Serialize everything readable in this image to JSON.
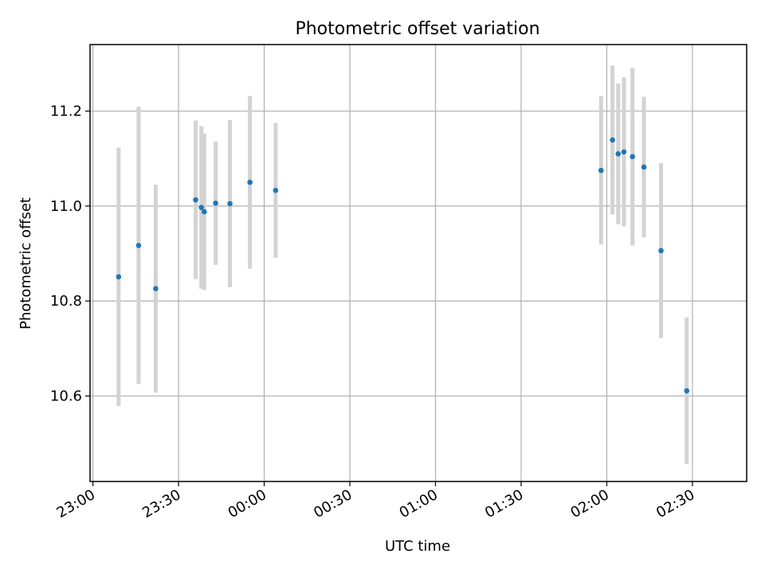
{
  "chart_data": {
    "type": "scatter",
    "title": "Photometric offset variation",
    "xlabel": "UTC time",
    "ylabel": "Photometric offset",
    "ylim": [
      10.42,
      11.34
    ],
    "xlim": [
      "22:59",
      "02:49"
    ],
    "grid": true,
    "x_ticks": [
      "23:00",
      "23:30",
      "00:00",
      "00:30",
      "01:00",
      "01:30",
      "02:00",
      "02:30"
    ],
    "y_ticks": [
      "10.6",
      "10.8",
      "11.0",
      "11.2"
    ],
    "colors": {
      "points": "#1f77b4",
      "errorbars": "#d3d3d3"
    },
    "points": [
      {
        "x": "23:09",
        "y": 10.851,
        "err": 0.272
      },
      {
        "x": "23:16",
        "y": 10.917,
        "err": 0.292
      },
      {
        "x": "23:22",
        "y": 10.826,
        "err": 0.219
      },
      {
        "x": "23:36",
        "y": 11.013,
        "err": 0.167
      },
      {
        "x": "23:38",
        "y": 10.997,
        "err": 0.171
      },
      {
        "x": "23:39",
        "y": 10.988,
        "err": 0.165
      },
      {
        "x": "23:43",
        "y": 11.006,
        "err": 0.13
      },
      {
        "x": "23:48",
        "y": 11.005,
        "err": 0.176
      },
      {
        "x": "23:55",
        "y": 11.05,
        "err": 0.182
      },
      {
        "x": "00:04",
        "y": 11.033,
        "err": 0.142
      },
      {
        "x": "01:58",
        "y": 11.075,
        "err": 0.156
      },
      {
        "x": "02:02",
        "y": 11.139,
        "err": 0.157
      },
      {
        "x": "02:04",
        "y": 11.11,
        "err": 0.148
      },
      {
        "x": "02:06",
        "y": 11.114,
        "err": 0.157
      },
      {
        "x": "02:09",
        "y": 11.104,
        "err": 0.187
      },
      {
        "x": "02:13",
        "y": 11.082,
        "err": 0.148
      },
      {
        "x": "02:19",
        "y": 10.906,
        "err": 0.184
      },
      {
        "x": "02:28",
        "y": 10.611,
        "err": 0.154
      }
    ]
  }
}
